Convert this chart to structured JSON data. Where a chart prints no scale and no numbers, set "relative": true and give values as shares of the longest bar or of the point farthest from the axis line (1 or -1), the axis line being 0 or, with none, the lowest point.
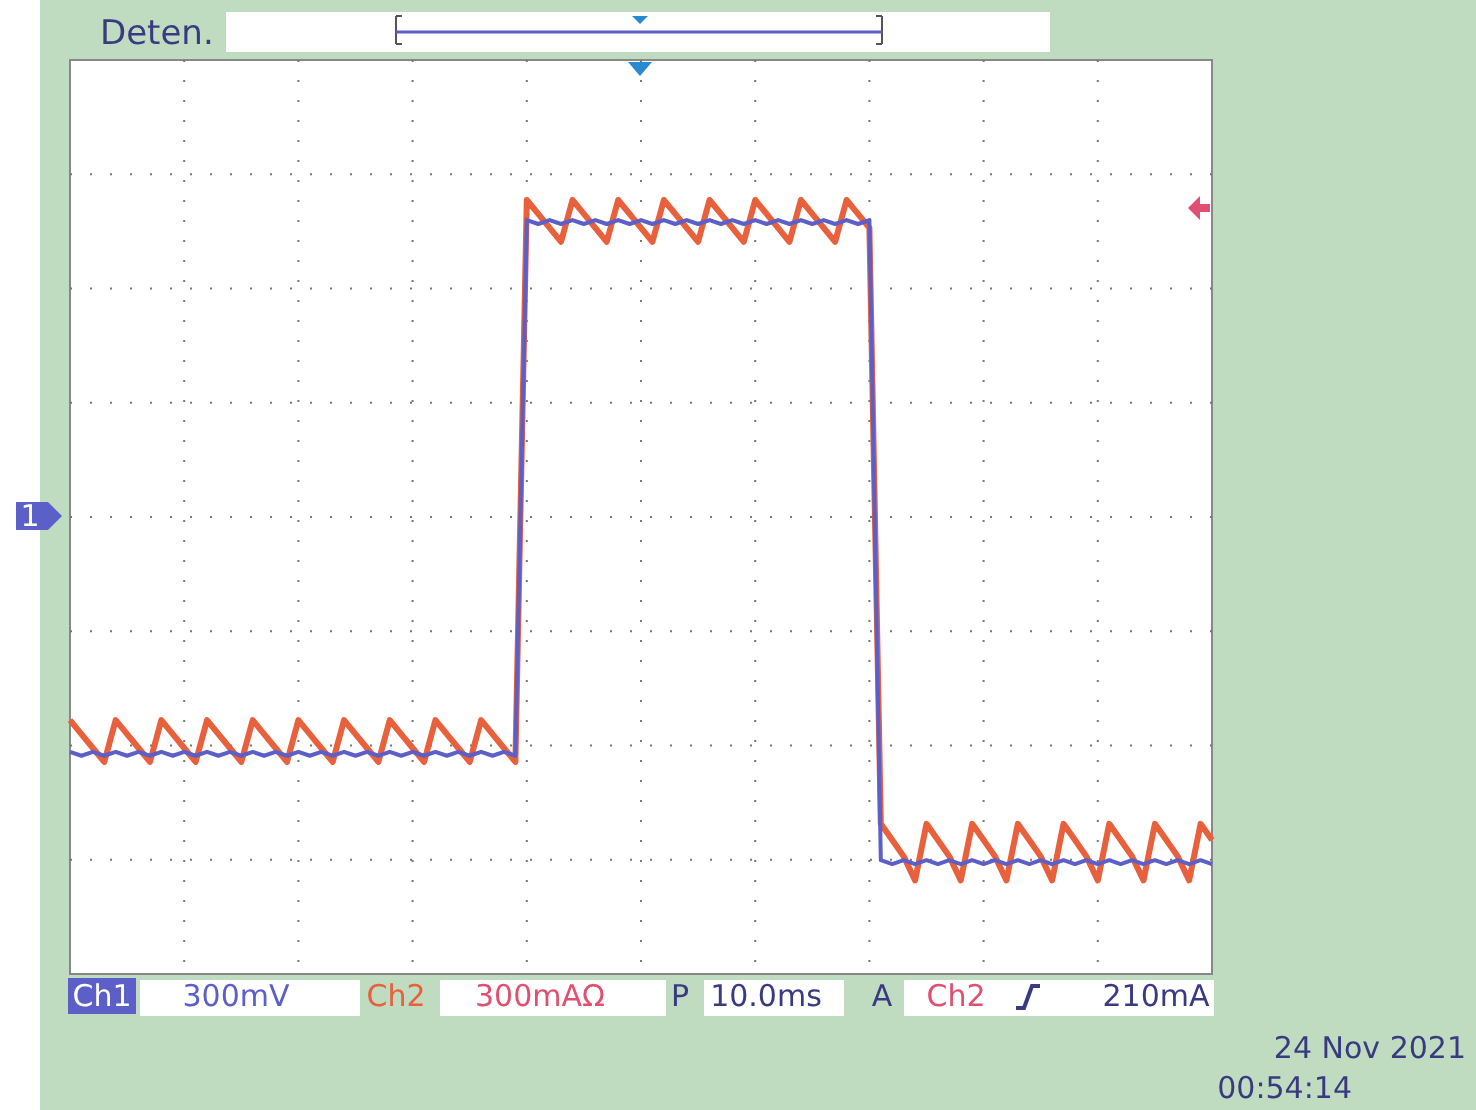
{
  "chart_data": {
    "type": "line",
    "relative": true,
    "grid": true,
    "line_style": "solid",
    "marker": "none",
    "categories": [
      null,
      null,
      null,
      null,
      null,
      null,
      null,
      null,
      null,
      null,
      null,
      null,
      null,
      null,
      null,
      null,
      null,
      null,
      null,
      null,
      null,
      null,
      null,
      null,
      null,
      null,
      null,
      null,
      null,
      null,
      null,
      null,
      null,
      null,
      null,
      null,
      null,
      null,
      null,
      null,
      null,
      null,
      null,
      null,
      null,
      null,
      null,
      null,
      null,
      null,
      null,
      null,
      null,
      null,
      null,
      null,
      null,
      null,
      null,
      null,
      null,
      null,
      null,
      null,
      null,
      null,
      null,
      null,
      null,
      null,
      null,
      null,
      null,
      null,
      null,
      null,
      null,
      null,
      null,
      null,
      null,
      null,
      null,
      null,
      null,
      null,
      null,
      null,
      null,
      null,
      null,
      null,
      null,
      null,
      null,
      null,
      null,
      null,
      null,
      null,
      null
    ],
    "series": [
      {
        "name": "Ch2",
        "color": "#e8603c",
        "values": [
          0.328,
          0.31,
          0.292,
          0.274,
          0.328,
          0.31,
          0.292,
          0.274,
          0.328,
          0.31,
          0.292,
          0.274,
          0.328,
          0.31,
          0.292,
          0.274,
          0.328,
          0.31,
          0.292,
          0.274,
          0.328,
          0.31,
          0.292,
          0.274,
          0.328,
          0.31,
          0.292,
          0.274,
          0.328,
          0.31,
          0.292,
          0.274,
          0.328,
          0.31,
          0.292,
          0.274,
          0.328,
          0.31,
          0.292,
          0.274,
          1,
          0.982,
          0.964,
          0.946,
          1,
          0.982,
          0.964,
          0.946,
          1,
          0.982,
          0.964,
          0.946,
          1,
          0.982,
          0.964,
          0.946,
          1,
          0.982,
          0.964,
          0.946,
          1,
          0.982,
          0.964,
          0.946,
          1,
          0.982,
          0.964,
          0.946,
          1,
          0.982,
          0.964,
          0.194,
          0.173,
          0.152,
          0.121,
          0.194,
          0.173,
          0.152,
          0.121,
          0.194,
          0.173,
          0.152,
          0.121,
          0.194,
          0.173,
          0.152,
          0.121,
          0.194,
          0.173,
          0.152,
          0.121,
          0.194,
          0.173,
          0.152,
          0.121,
          0.194,
          0.173,
          0.152,
          0.121,
          0.194,
          0.173
        ]
      },
      {
        "name": "Ch1",
        "color": "#5b5fc7",
        "values": [
          0.287,
          0.282,
          0.287,
          0.282,
          0.287,
          0.282,
          0.287,
          0.282,
          0.287,
          0.282,
          0.287,
          0.282,
          0.287,
          0.282,
          0.287,
          0.282,
          0.287,
          0.282,
          0.287,
          0.282,
          0.287,
          0.282,
          0.287,
          0.282,
          0.287,
          0.282,
          0.287,
          0.282,
          0.287,
          0.282,
          0.287,
          0.282,
          0.287,
          0.282,
          0.287,
          0.282,
          0.287,
          0.282,
          0.287,
          0.282,
          0.974,
          0.969,
          0.974,
          0.969,
          0.974,
          0.969,
          0.974,
          0.969,
          0.974,
          0.969,
          0.974,
          0.969,
          0.974,
          0.969,
          0.974,
          0.969,
          0.974,
          0.969,
          0.974,
          0.969,
          0.974,
          0.969,
          0.974,
          0.969,
          0.974,
          0.969,
          0.974,
          0.969,
          0.974,
          0.969,
          0.974,
          0.147,
          0.142,
          0.147,
          0.142,
          0.147,
          0.142,
          0.147,
          0.142,
          0.147,
          0.142,
          0.147,
          0.142,
          0.147,
          0.142,
          0.147,
          0.142,
          0.147,
          0.142,
          0.147,
          0.142,
          0.147,
          0.142,
          0.147,
          0.142,
          0.147,
          0.142,
          0.147,
          0.142,
          0.147,
          0.142
        ]
      }
    ],
    "annotations": [
      "Deten.",
      "1",
      "300mV",
      "300mAΩ",
      "P",
      "10.0ms",
      "A",
      "Ch2",
      "210mA",
      "24 Nov 2021",
      "00:54:14"
    ]
  }
}
